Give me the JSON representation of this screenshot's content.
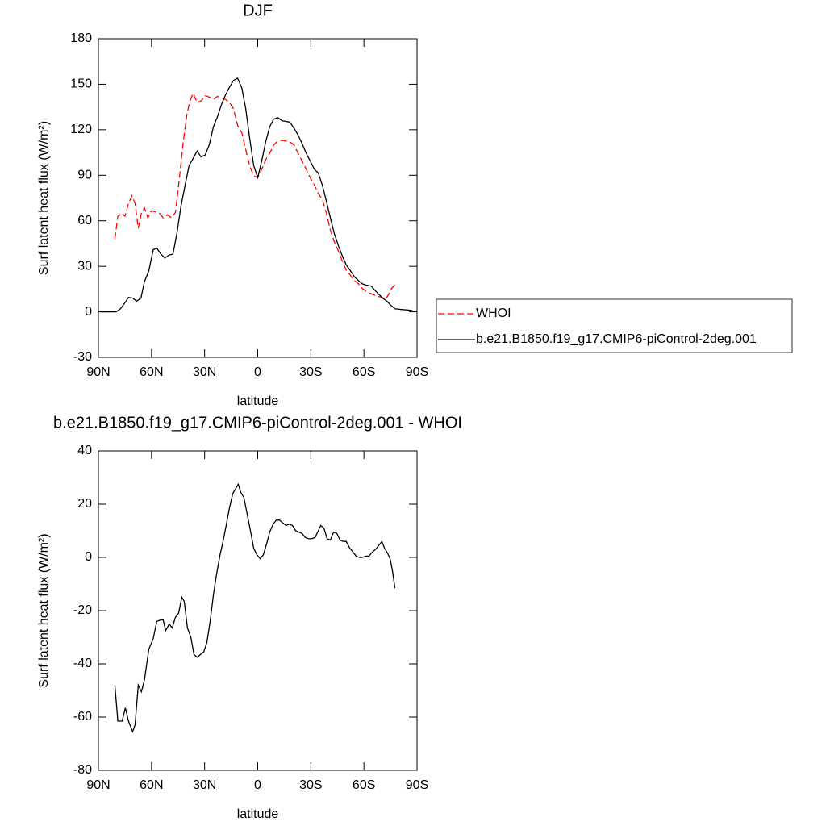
{
  "chart_data": [
    {
      "type": "line",
      "title": "DJF",
      "xlabel": "latitude",
      "ylabel": "Surf latent heat flux (W/m²)",
      "xlim": [
        90,
        -90
      ],
      "xticks": [
        {
          "value": 90,
          "label": "90N"
        },
        {
          "value": 60,
          "label": "60N"
        },
        {
          "value": 30,
          "label": "30N"
        },
        0,
        {
          "value": -30,
          "label": "30S"
        },
        {
          "value": -60,
          "label": "60S"
        },
        {
          "value": -90,
          "label": "90S"
        }
      ],
      "ylim": [
        -30,
        180
      ],
      "yticks": [
        -30,
        0,
        30,
        60,
        90,
        120,
        150,
        180
      ],
      "legend": "right",
      "series": [
        {
          "name": "WHOI",
          "color": "#ff0000",
          "style": "dashed",
          "x": [
            80.7,
            79,
            76.6,
            75,
            73,
            71,
            69.3,
            67.5,
            65.7,
            64,
            62,
            60.2,
            58,
            55.6,
            53.4,
            51,
            48.8,
            46.5,
            44.2,
            42,
            40,
            38.3,
            36.5,
            34.2,
            32,
            29.6,
            27.4,
            25,
            22.8,
            20.5,
            18.2,
            16,
            13.7,
            11.4,
            9,
            6.8,
            4.6,
            2.3,
            0,
            -2.3,
            -4.6,
            -6.8,
            -9,
            -11.4,
            -13.7,
            -16,
            -18.2,
            -20.5,
            -22.8,
            -25,
            -27.4,
            -29.6,
            -32,
            -34.2,
            -36.5,
            -38.8,
            -41,
            -43.3,
            -45.6,
            -47.9,
            -50,
            -52.4,
            -54.7,
            -57,
            -59,
            -61.5,
            -64,
            -66,
            -68.5,
            -70.5,
            -72,
            -74,
            -75.7,
            -77.5
          ],
          "values": [
            48,
            63,
            65,
            63,
            71.5,
            76.5,
            71.5,
            55,
            65,
            68.5,
            62,
            66.5,
            66,
            65,
            62,
            64,
            62,
            65.5,
            88.5,
            112.5,
            130,
            139,
            144,
            138,
            139,
            142.5,
            141.5,
            140,
            142,
            141,
            140,
            138,
            134,
            123,
            118,
            107,
            96.5,
            89.5,
            88.5,
            94,
            100.5,
            104.5,
            110,
            112.5,
            113,
            112.5,
            112,
            110,
            104.5,
            99.5,
            94,
            88.5,
            83.5,
            78,
            74,
            65,
            54,
            46,
            40,
            33,
            27.5,
            24,
            20.5,
            18.5,
            15.5,
            13,
            12,
            11,
            10,
            9.5,
            8,
            11.5,
            15.5,
            18
          ]
        },
        {
          "name": "b.e21.B1850.f19_g17.CMIP6-piControl-2deg.001",
          "color": "#000000",
          "style": "solid",
          "x": [
            89,
            80,
            77.5,
            75,
            73,
            70.5,
            68.5,
            66,
            64,
            61.5,
            59,
            57,
            54.7,
            52.4,
            50,
            47.9,
            45.6,
            43.3,
            41,
            38.8,
            36.5,
            34.2,
            32,
            29.6,
            27.4,
            25,
            22.8,
            20.5,
            18.2,
            16,
            13.7,
            11.4,
            9,
            6.8,
            4.6,
            2.3,
            0,
            -2.3,
            -4.6,
            -6.8,
            -9,
            -11.4,
            -13.7,
            -16,
            -18.2,
            -20.5,
            -22.8,
            -25,
            -27.4,
            -29.6,
            -32,
            -34.2,
            -36.5,
            -38.8,
            -41,
            -43.3,
            -45.6,
            -47.9,
            -50,
            -52.4,
            -54.7,
            -57,
            -59,
            -61.5,
            -64,
            -66,
            -68.5,
            -70.5,
            -73,
            -75,
            -77.5,
            -82,
            -86.6,
            -89
          ],
          "values": [
            0,
            0,
            2,
            6,
            9.5,
            9,
            7,
            9,
            20,
            27,
            41,
            42,
            38,
            35.5,
            37.5,
            38,
            52,
            70,
            83.5,
            96.5,
            101,
            106,
            102,
            103.5,
            110,
            122,
            128.5,
            136.5,
            143,
            148,
            152.5,
            154,
            147.5,
            134,
            115,
            96.5,
            88.5,
            99.5,
            112.5,
            122,
            127,
            128,
            126,
            125.5,
            125,
            121,
            116.5,
            111,
            104.5,
            99.5,
            94,
            91.5,
            83.5,
            73,
            62,
            51.5,
            43.5,
            36.5,
            31,
            27,
            23,
            20.5,
            18.5,
            17.5,
            17,
            14.5,
            11.5,
            9,
            7,
            4.5,
            2,
            1.5,
            1,
            0
          ]
        }
      ]
    },
    {
      "type": "line",
      "title": "b.e21.B1850.f19_g17.CMIP6-piControl-2deg.001 - WHOI",
      "xlabel": "latitude",
      "ylabel": "Surf latent heat flux (W/m²)",
      "xlim": [
        90,
        -90
      ],
      "xticks": [
        {
          "value": 90,
          "label": "90N"
        },
        {
          "value": 60,
          "label": "60N"
        },
        {
          "value": 30,
          "label": "30N"
        },
        0,
        {
          "value": -30,
          "label": "30S"
        },
        {
          "value": -60,
          "label": "60S"
        },
        {
          "value": -90,
          "label": "90S"
        }
      ],
      "ylim": [
        -80,
        40
      ],
      "yticks": [
        -80,
        -60,
        -40,
        -20,
        0,
        20,
        40
      ],
      "series": [
        {
          "color": "#000000",
          "style": "solid",
          "x": [
            80.7,
            79,
            76.6,
            74.8,
            73,
            70.7,
            69.3,
            67.5,
            65.7,
            64,
            61.5,
            59,
            57,
            54.7,
            53.4,
            52,
            50,
            48.3,
            46.5,
            44.7,
            42.9,
            41.5,
            39.7,
            37.8,
            36,
            34.2,
            32.4,
            30.5,
            28.7,
            26.9,
            25,
            23.3,
            21.4,
            19.6,
            17.8,
            16,
            14.1,
            12.3,
            11,
            9.6,
            7.8,
            5.9,
            4.1,
            2.3,
            0.5,
            -1.4,
            -3.2,
            -5,
            -6.8,
            -8.7,
            -10.5,
            -12.3,
            -14.1,
            -16,
            -17.8,
            -19.6,
            -21.4,
            -23.3,
            -25,
            -26.9,
            -28.7,
            -30.5,
            -32.4,
            -34.2,
            -35.6,
            -37.4,
            -39.2,
            -41,
            -42.9,
            -44.7,
            -46.5,
            -48.3,
            -50,
            -52,
            -53.8,
            -55.6,
            -57.4,
            -59.3,
            -61,
            -62.9,
            -64.7,
            -66.6,
            -68.4,
            -70.2,
            -71.6,
            -73.4,
            -74.8,
            -76.1,
            -77.5
          ],
          "values": [
            -48,
            -61.5,
            -61.5,
            -56.5,
            -61.5,
            -65.5,
            -63,
            -48,
            -50.5,
            -46,
            -34.5,
            -30.5,
            -24,
            -23.5,
            -23.5,
            -27.5,
            -25,
            -26.5,
            -22.5,
            -21,
            -15,
            -16.5,
            -26.5,
            -30,
            -36.5,
            -37.5,
            -36.5,
            -35.5,
            -32,
            -24,
            -14,
            -6.5,
            0.5,
            6,
            12,
            18.5,
            24,
            26,
            27.5,
            24.5,
            22.5,
            16,
            10,
            3.5,
            1,
            -0.5,
            1,
            5,
            9.5,
            12.5,
            14,
            14,
            13,
            12,
            12.5,
            12,
            10,
            9.5,
            9,
            7.5,
            7,
            7,
            7.5,
            10,
            12,
            11,
            7,
            6.5,
            9.5,
            9,
            6.5,
            6,
            6,
            3.5,
            2,
            0.5,
            0,
            0,
            0.5,
            0.5,
            2,
            3,
            4.5,
            6,
            3.5,
            1.5,
            -0.5,
            -5,
            -11.5
          ]
        }
      ]
    }
  ]
}
